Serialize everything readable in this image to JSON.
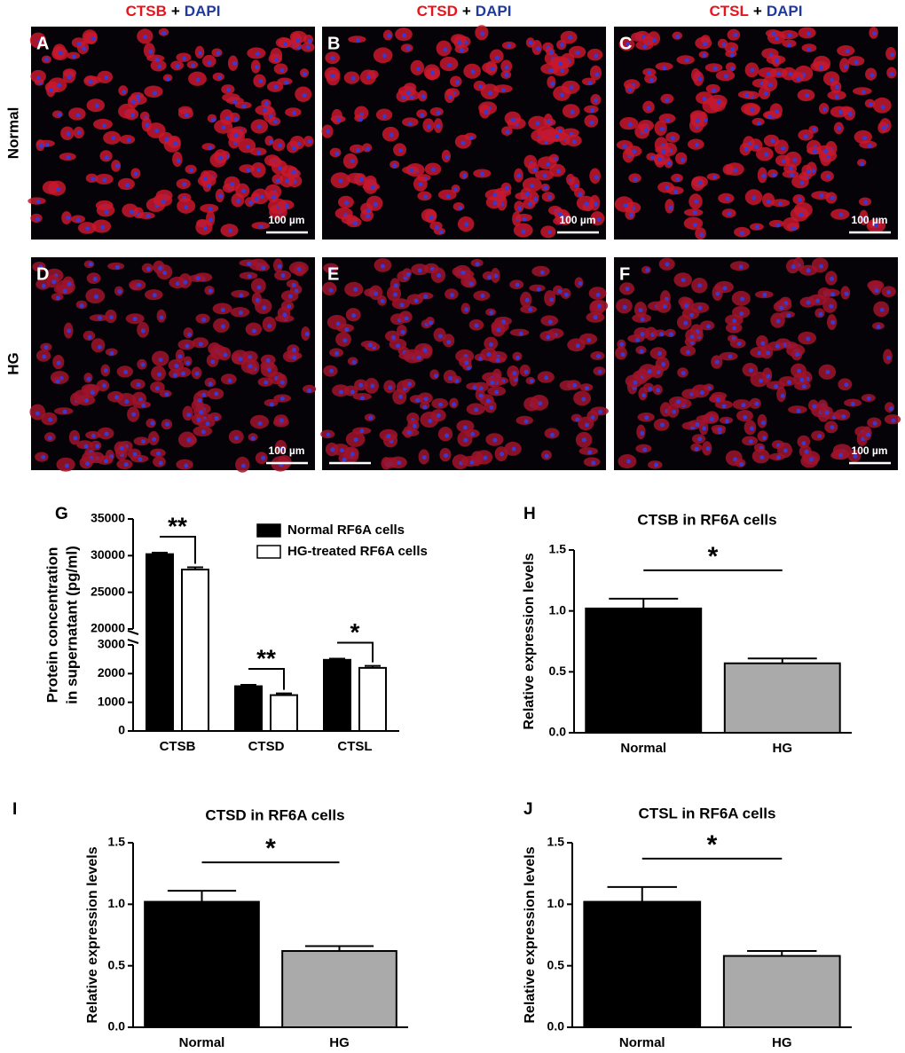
{
  "micrographs": {
    "columns": [
      [
        "CTSB",
        "+",
        "DAPI"
      ],
      [
        "CTSD",
        "+",
        "DAPI"
      ],
      [
        "CTSL",
        "+",
        "DAPI"
      ]
    ],
    "rows": [
      "Normal",
      "HG"
    ],
    "panels": [
      {
        "letter": "A",
        "scale": "100 µm"
      },
      {
        "letter": "B",
        "scale": "100 µm"
      },
      {
        "letter": "C",
        "scale": "100 µm"
      },
      {
        "letter": "D",
        "scale": "100 µm"
      },
      {
        "letter": "E"
      },
      {
        "letter": "F",
        "scale": "100 µm"
      }
    ]
  },
  "chart_data": [
    {
      "type": "bar",
      "panel": "G",
      "ylabel": [
        "Protein concentration",
        "in supernatant (pg/ml)"
      ],
      "categories": [
        "CTSB",
        "CTSD",
        "CTSL"
      ],
      "series": [
        {
          "name": "Normal RF6A cells",
          "color": "#000000",
          "values": [
            30200,
            1560,
            2480
          ],
          "errors": [
            200,
            50,
            40
          ]
        },
        {
          "name": "HG-treated RF6A cells",
          "color": "#ffffff",
          "values": [
            28100,
            1250,
            2200
          ],
          "errors": [
            300,
            60,
            70
          ]
        }
      ],
      "annotations": [
        "**",
        "**",
        "*"
      ],
      "ylim": [
        0,
        35000
      ],
      "ybreak": [
        3000,
        20000
      ],
      "yticks": [
        0,
        1000,
        2000,
        3000,
        20000,
        25000,
        30000,
        35000
      ]
    },
    {
      "type": "bar",
      "panel": "H",
      "title": "CTSB in RF6A cells",
      "ylabel": "Relative expression levels",
      "categories": [
        "Normal",
        "HG"
      ],
      "values": [
        1.02,
        0.57
      ],
      "errors": [
        0.08,
        0.04
      ],
      "colors": [
        "#000000",
        "#aaaaaa"
      ],
      "annotation": "*",
      "ylim": [
        0,
        1.5
      ],
      "yticks": [
        {
          "value": 0,
          "label": "0.0"
        },
        {
          "value": 0.5,
          "label": "0.5"
        },
        {
          "value": 1,
          "label": "1.0"
        },
        {
          "value": 1.5,
          "label": "1.5"
        }
      ]
    },
    {
      "type": "bar",
      "panel": "I",
      "title": "CTSD in RF6A cells",
      "ylabel": "Relative expression levels",
      "categories": [
        "Normal",
        "HG"
      ],
      "values": [
        1.02,
        0.62
      ],
      "errors": [
        0.09,
        0.04
      ],
      "colors": [
        "#000000",
        "#aaaaaa"
      ],
      "annotation": "*",
      "ylim": [
        0,
        1.5
      ],
      "yticks": [
        {
          "value": 0,
          "label": "0.0"
        },
        {
          "value": 0.5,
          "label": "0.5"
        },
        {
          "value": 1,
          "label": "1.0"
        },
        {
          "value": 1.5,
          "label": "1.5"
        }
      ]
    },
    {
      "type": "bar",
      "panel": "J",
      "title": "CTSL in RF6A cells",
      "ylabel": "Relative expression levels",
      "categories": [
        "Normal",
        "HG"
      ],
      "values": [
        1.02,
        0.58
      ],
      "errors": [
        0.12,
        0.04
      ],
      "colors": [
        "#000000",
        "#aaaaaa"
      ],
      "annotation": "*",
      "ylim": [
        0,
        1.5
      ],
      "yticks": [
        {
          "value": 0,
          "label": "0.0"
        },
        {
          "value": 0.5,
          "label": "0.5"
        },
        {
          "value": 1,
          "label": "1.0"
        },
        {
          "value": 1.5,
          "label": "1.5"
        }
      ]
    }
  ]
}
